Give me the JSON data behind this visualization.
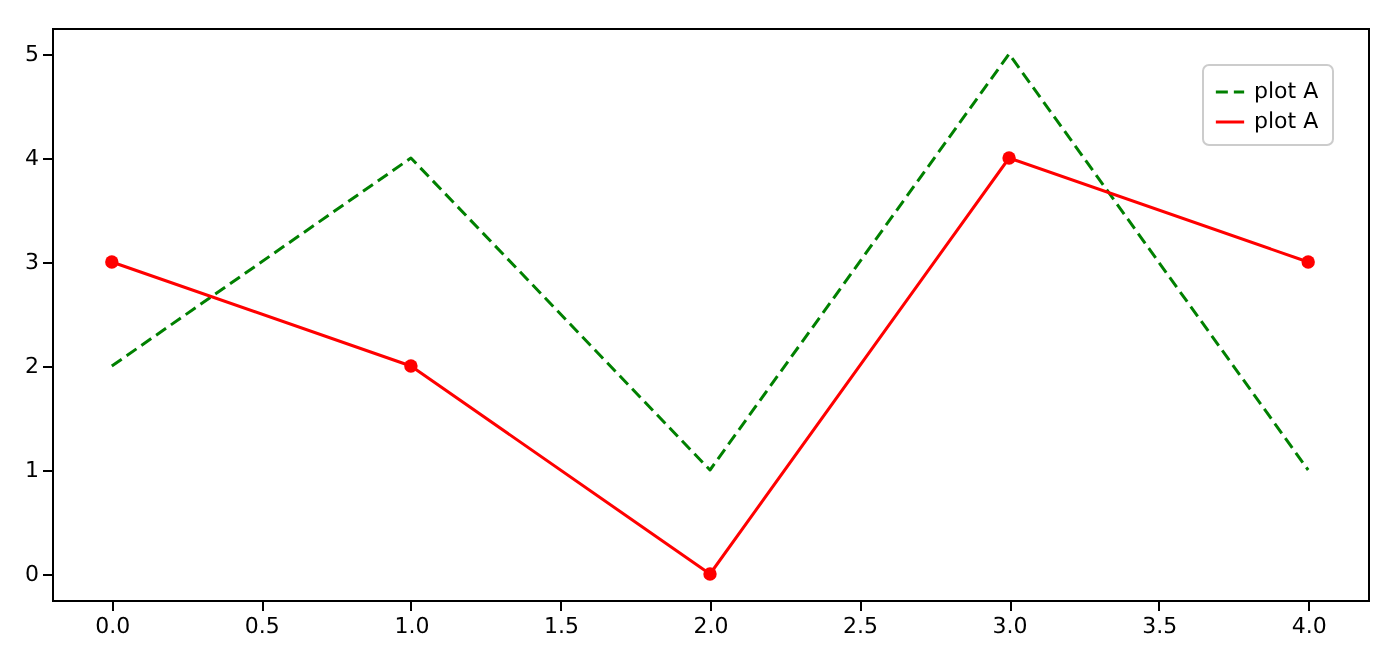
{
  "chart_data": {
    "type": "line",
    "x": [
      0,
      1,
      2,
      3,
      4
    ],
    "series": [
      {
        "name": "plot A",
        "color": "#008000",
        "values": [
          2,
          4,
          1,
          5,
          1
        ],
        "line_style": "dashed",
        "marker": "none"
      },
      {
        "name": "plot A",
        "color": "#ff0000",
        "values": [
          3,
          2,
          0,
          4,
          3
        ],
        "line_style": "solid",
        "marker": "circle"
      }
    ],
    "xlim": [
      -0.2,
      4.2
    ],
    "xticks": [
      {
        "value": 0,
        "label": "0.0"
      },
      {
        "value": 0.5,
        "label": "0.5"
      },
      {
        "value": 1,
        "label": "1.0"
      },
      {
        "value": 1.5,
        "label": "1.5"
      },
      {
        "value": 2,
        "label": "2.0"
      },
      {
        "value": 2.5,
        "label": "2.5"
      },
      {
        "value": 3,
        "label": "3.0"
      },
      {
        "value": 3.5,
        "label": "3.5"
      },
      {
        "value": 4,
        "label": "4.0"
      }
    ],
    "ylim": [
      -0.25,
      5.25
    ],
    "yticks": [
      0,
      1,
      2,
      3,
      4,
      5
    ],
    "grid": false,
    "legend": "top right"
  }
}
